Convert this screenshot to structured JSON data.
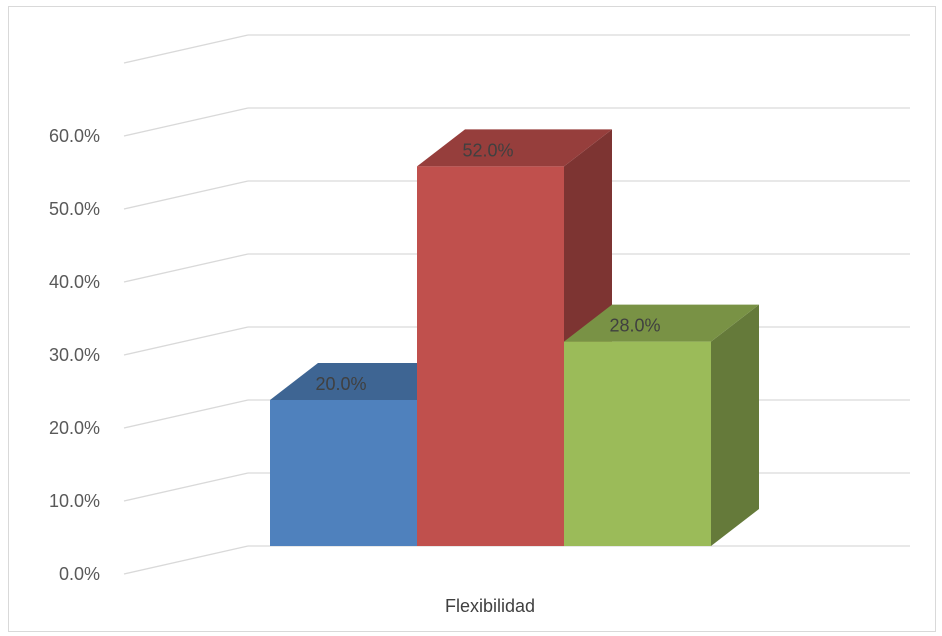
{
  "chart_data": {
    "type": "bar",
    "categories": [
      "Flexibilidad"
    ],
    "series": [
      {
        "values": [
          20.0
        ],
        "color": "#4f81bd",
        "data_label": "20.0%"
      },
      {
        "values": [
          52.0
        ],
        "color": "#c0504d",
        "data_label": "52.0%"
      },
      {
        "values": [
          28.0
        ],
        "color": "#9bbb59",
        "data_label": "28.0%"
      }
    ],
    "y_ticks": [
      "0.0%",
      "10.0%",
      "20.0%",
      "30.0%",
      "40.0%",
      "50.0%",
      "60.0%"
    ],
    "ylim": [
      0,
      60
    ],
    "grid": true,
    "style": "3d-clustered-column",
    "legend": "none"
  }
}
